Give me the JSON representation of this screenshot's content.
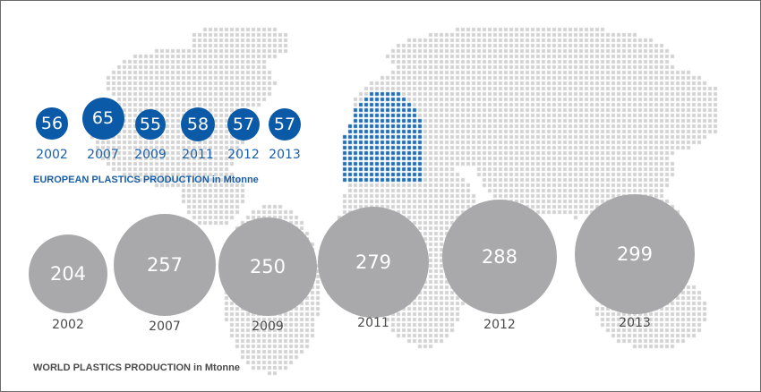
{
  "chart_data": [
    {
      "type": "bubble",
      "title": "EUROPEAN PLASTICS PRODUCTION in Mtonne",
      "categories": [
        "2002",
        "2007",
        "2009",
        "2011",
        "2012",
        "2013"
      ],
      "values": [
        56,
        65,
        55,
        58,
        57,
        57
      ],
      "color": "#0b5aa8"
    },
    {
      "type": "bubble",
      "title": "WORLD PLASTICS PRODUCTION in Mtonne",
      "categories": [
        "2002",
        "2007",
        "2009",
        "2011",
        "2012",
        "2013"
      ],
      "values": [
        204,
        257,
        250,
        279,
        288,
        299
      ],
      "color": "#a9a9ab"
    }
  ],
  "background": {
    "map_color": "#d2d2d2",
    "europe_highlight_color": "#1f6cc0"
  }
}
